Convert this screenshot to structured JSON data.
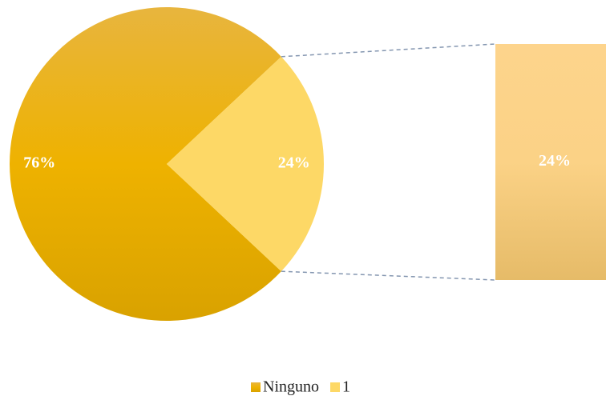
{
  "chart_data": {
    "type": "pie",
    "categories": [
      "Ninguno",
      "1"
    ],
    "values": [
      76,
      24
    ],
    "value_labels": [
      "76%",
      "24%"
    ],
    "colors": [
      "#e3ad12",
      "#fdd866"
    ],
    "secondary_color": "#fcd38a",
    "legend": "bottom"
  }
}
